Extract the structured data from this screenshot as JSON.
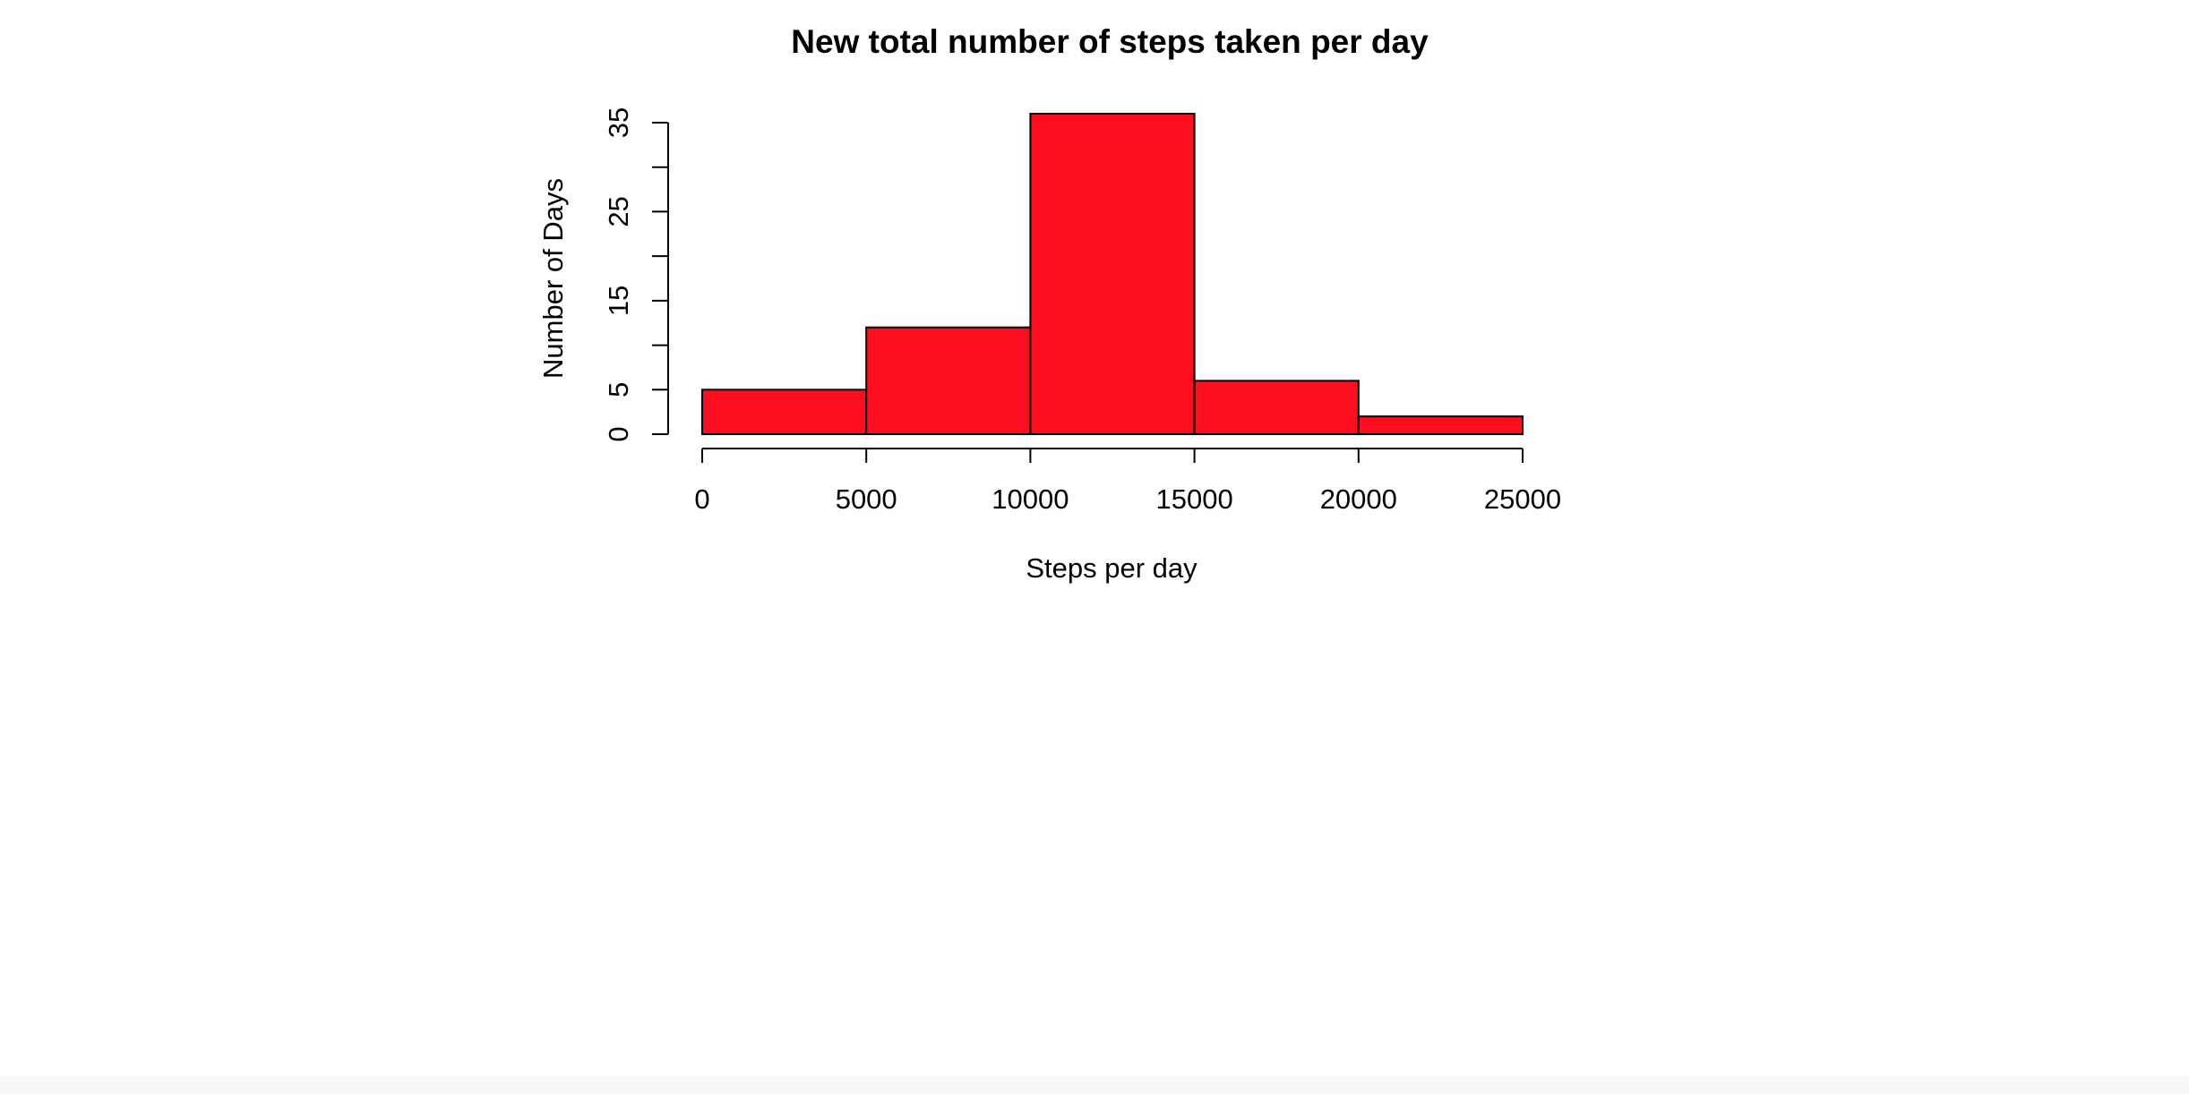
{
  "chart_data": {
    "type": "bar",
    "title": "New total number of steps taken per day",
    "xlabel": "Steps per day",
    "ylabel": "Number of Days",
    "bins": [
      {
        "start": 0,
        "end": 5000,
        "count": 5
      },
      {
        "start": 5000,
        "end": 10000,
        "count": 12
      },
      {
        "start": 10000,
        "end": 15000,
        "count": 36
      },
      {
        "start": 15000,
        "end": 20000,
        "count": 6
      },
      {
        "start": 20000,
        "end": 25000,
        "count": 2
      }
    ],
    "xlim": [
      0,
      25000
    ],
    "ylim": [
      0,
      35
    ],
    "x_ticks": [
      0,
      5000,
      10000,
      15000,
      20000,
      25000
    ],
    "x_tick_labels": [
      "0",
      "5000",
      "10000",
      "15000",
      "20000",
      "25000"
    ],
    "y_ticks": [
      0,
      5,
      10,
      15,
      20,
      25,
      30,
      35
    ],
    "y_tick_labels": [
      "0",
      "5",
      "",
      "15",
      "",
      "25",
      "",
      "35"
    ],
    "bar_color": "#fc0e1f",
    "grid": false
  }
}
